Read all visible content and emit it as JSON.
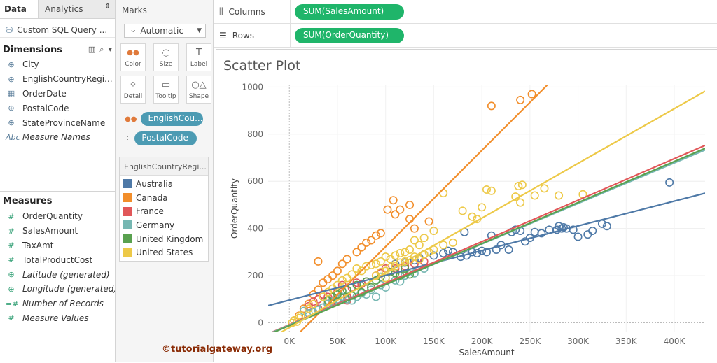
{
  "tabs": {
    "data": "Data",
    "analytics": "Analytics"
  },
  "datasource": {
    "label": "Custom SQL Query ..."
  },
  "dimensions": {
    "title": "Dimensions",
    "items": [
      {
        "label": "City",
        "icon": "globe-icon",
        "glyph": "⊕"
      },
      {
        "label": "EnglishCountryRegi...",
        "icon": "globe-icon",
        "glyph": "⊕"
      },
      {
        "label": "OrderDate",
        "icon": "calendar-icon",
        "glyph": "▦"
      },
      {
        "label": "PostalCode",
        "icon": "globe-icon",
        "glyph": "⊕"
      },
      {
        "label": "StateProvinceName",
        "icon": "globe-icon",
        "glyph": "⊕"
      },
      {
        "label": "Measure Names",
        "icon": "abc-icon",
        "glyph": "Abc"
      }
    ]
  },
  "measures": {
    "title": "Measures",
    "items": [
      {
        "label": "OrderQuantity",
        "icon": "number-icon",
        "glyph": "#"
      },
      {
        "label": "SalesAmount",
        "icon": "number-icon",
        "glyph": "#"
      },
      {
        "label": "TaxAmt",
        "icon": "number-icon",
        "glyph": "#"
      },
      {
        "label": "TotalProductCost",
        "icon": "number-icon",
        "glyph": "#"
      },
      {
        "label": "Latitude (generated)",
        "icon": "globe-icon",
        "glyph": "⊕"
      },
      {
        "label": "Longitude (generated)",
        "icon": "globe-icon",
        "glyph": "⊕"
      },
      {
        "label": "Number of Records",
        "icon": "number-icon",
        "glyph": "=#"
      },
      {
        "label": "Measure Values",
        "icon": "number-icon",
        "glyph": "#"
      }
    ]
  },
  "marks": {
    "title": "Marks",
    "type": "Automatic",
    "buttons": [
      {
        "label": "Color",
        "glyph": "●●"
      },
      {
        "label": "Size",
        "glyph": "◌"
      },
      {
        "label": "Label",
        "glyph": "T"
      },
      {
        "label": "Detail",
        "glyph": "⁘"
      },
      {
        "label": "Tooltip",
        "glyph": "▭"
      },
      {
        "label": "Shape",
        "glyph": "○△"
      }
    ],
    "pills": [
      "EnglishCou...",
      "PostalCode"
    ]
  },
  "legend": {
    "title": "EnglishCountryRegi...",
    "items": [
      {
        "label": "Australia",
        "color": "#4e79a7"
      },
      {
        "label": "Canada",
        "color": "#f28e2b"
      },
      {
        "label": "France",
        "color": "#e15759"
      },
      {
        "label": "Germany",
        "color": "#76b7b2"
      },
      {
        "label": "United Kingdom",
        "color": "#59a14f"
      },
      {
        "label": "United States",
        "color": "#edc948"
      }
    ]
  },
  "shelves": {
    "columns_label": "Columns",
    "columns_pill": "SUM(SalesAmount)",
    "rows_label": "Rows",
    "rows_pill": "SUM(OrderQuantity)"
  },
  "watermark": "©tutorialgateway.org",
  "chart_data": {
    "type": "scatter",
    "title": "Scatter Plot",
    "xlabel": "SalesAmount",
    "ylabel": "OrderQuantity",
    "xlim": [
      -22000,
      432000
    ],
    "ylim": [
      -40,
      1010
    ],
    "xticks": [
      0,
      50000,
      100000,
      150000,
      200000,
      250000,
      300000,
      350000,
      400000
    ],
    "xtick_labels": [
      "0K",
      "50K",
      "100K",
      "150K",
      "200K",
      "250K",
      "300K",
      "350K",
      "400K"
    ],
    "yticks": [
      0,
      200,
      400,
      600,
      800,
      1000
    ],
    "ytick_labels": [
      "0",
      "200",
      "400",
      "600",
      "800",
      "1000"
    ],
    "series": [
      {
        "name": "Australia",
        "color": "#4e79a7",
        "trend": [
          0.00105,
          96
        ],
        "points": [
          [
            182000,
            385
          ],
          [
            210000,
            370
          ],
          [
            231000,
            385
          ],
          [
            235000,
            395
          ],
          [
            240000,
            390
          ],
          [
            245000,
            345
          ],
          [
            250000,
            360
          ],
          [
            255000,
            385
          ],
          [
            262000,
            380
          ],
          [
            270000,
            395
          ],
          [
            278000,
            395
          ],
          [
            280000,
            410
          ],
          [
            283000,
            400
          ],
          [
            285000,
            405
          ],
          [
            288000,
            400
          ],
          [
            295000,
            395
          ],
          [
            300000,
            365
          ],
          [
            310000,
            375
          ],
          [
            315000,
            390
          ],
          [
            325000,
            420
          ],
          [
            330000,
            410
          ],
          [
            395000,
            595
          ],
          [
            150000,
            285
          ],
          [
            160000,
            295
          ],
          [
            165000,
            305
          ],
          [
            170000,
            300
          ],
          [
            178000,
            280
          ],
          [
            184000,
            285
          ],
          [
            190000,
            300
          ],
          [
            195000,
            295
          ],
          [
            200000,
            305
          ],
          [
            205000,
            300
          ],
          [
            215000,
            310
          ],
          [
            220000,
            330
          ],
          [
            228000,
            310
          ],
          [
            140000,
            290
          ],
          [
            135000,
            275
          ],
          [
            130000,
            265
          ],
          [
            120000,
            255
          ],
          [
            110000,
            250
          ]
        ]
      },
      {
        "name": "Canada",
        "color": "#f28e2b",
        "trend": [
          0.00408,
          -85
        ],
        "points": [
          [
            210000,
            920
          ],
          [
            240000,
            945
          ],
          [
            252000,
            970
          ],
          [
            102000,
            480
          ],
          [
            108000,
            520
          ],
          [
            115000,
            480
          ],
          [
            125000,
            500
          ],
          [
            110000,
            460
          ],
          [
            125000,
            440
          ],
          [
            145000,
            430
          ],
          [
            130000,
            400
          ],
          [
            30000,
            260
          ],
          [
            90000,
            370
          ],
          [
            95000,
            380
          ],
          [
            85000,
            350
          ],
          [
            80000,
            340
          ],
          [
            75000,
            320
          ],
          [
            70000,
            300
          ],
          [
            60000,
            270
          ],
          [
            55000,
            250
          ],
          [
            45000,
            200
          ],
          [
            40000,
            185
          ],
          [
            35000,
            170
          ],
          [
            50000,
            220
          ],
          [
            20000,
            80
          ],
          [
            15000,
            60
          ],
          [
            10000,
            30
          ],
          [
            25000,
            120
          ],
          [
            30000,
            140
          ],
          [
            5000,
            10
          ]
        ]
      },
      {
        "name": "France",
        "color": "#e15759",
        "trend": [
          0.00176,
          -8
        ],
        "points": [
          [
            20000,
            70
          ],
          [
            25000,
            90
          ],
          [
            30000,
            100
          ],
          [
            35000,
            120
          ],
          [
            40000,
            110
          ],
          [
            45000,
            95
          ],
          [
            50000,
            130
          ],
          [
            55000,
            160
          ],
          [
            60000,
            110
          ],
          [
            65000,
            150
          ],
          [
            70000,
            170
          ],
          [
            75000,
            165
          ],
          [
            80000,
            175
          ],
          [
            90000,
            200
          ],
          [
            95000,
            210
          ],
          [
            100000,
            230
          ],
          [
            30000,
            60
          ],
          [
            40000,
            80
          ],
          [
            50000,
            90
          ],
          [
            60000,
            95
          ],
          [
            110000,
            230
          ],
          [
            120000,
            240
          ],
          [
            130000,
            250
          ],
          [
            140000,
            260
          ]
        ]
      },
      {
        "name": "Germany",
        "color": "#76b7b2",
        "trend": [
          0.00172,
          -10
        ],
        "points": [
          [
            15000,
            50
          ],
          [
            20000,
            40
          ],
          [
            25000,
            45
          ],
          [
            30000,
            55
          ],
          [
            35000,
            65
          ],
          [
            40000,
            80
          ],
          [
            45000,
            90
          ],
          [
            50000,
            100
          ],
          [
            55000,
            110
          ],
          [
            60000,
            100
          ],
          [
            65000,
            95
          ],
          [
            70000,
            110
          ],
          [
            80000,
            120
          ],
          [
            90000,
            110
          ],
          [
            100000,
            150
          ],
          [
            110000,
            180
          ],
          [
            120000,
            200
          ],
          [
            115000,
            175
          ],
          [
            130000,
            210
          ],
          [
            140000,
            230
          ],
          [
            85000,
            140
          ],
          [
            75000,
            125
          ],
          [
            95000,
            160
          ]
        ]
      },
      {
        "name": "United Kingdom",
        "color": "#59a14f",
        "trend": [
          0.00174,
          -12
        ],
        "points": [
          [
            40000,
            95
          ],
          [
            50000,
            120
          ],
          [
            60000,
            140
          ],
          [
            70000,
            160
          ],
          [
            80000,
            175
          ],
          [
            90000,
            180
          ],
          [
            100000,
            190
          ],
          [
            110000,
            210
          ],
          [
            115000,
            200
          ],
          [
            105000,
            215
          ],
          [
            95000,
            195
          ],
          [
            85000,
            150
          ],
          [
            75000,
            130
          ],
          [
            65000,
            115
          ],
          [
            55000,
            135
          ],
          [
            45000,
            110
          ],
          [
            120000,
            230
          ],
          [
            125000,
            205
          ]
        ]
      },
      {
        "name": "United States",
        "color": "#edc948",
        "trend": [
          0.00232,
          -20
        ],
        "points": [
          [
            160000,
            550
          ],
          [
            200000,
            490
          ],
          [
            205000,
            565
          ],
          [
            210000,
            560
          ],
          [
            235000,
            535
          ],
          [
            238000,
            580
          ],
          [
            242000,
            585
          ],
          [
            240000,
            510
          ],
          [
            255000,
            540
          ],
          [
            265000,
            570
          ],
          [
            280000,
            540
          ],
          [
            305000,
            545
          ],
          [
            180000,
            475
          ],
          [
            190000,
            450
          ],
          [
            195000,
            440
          ],
          [
            150000,
            390
          ],
          [
            140000,
            360
          ],
          [
            130000,
            350
          ],
          [
            135000,
            330
          ],
          [
            120000,
            300
          ],
          [
            125000,
            310
          ],
          [
            100000,
            280
          ],
          [
            105000,
            270
          ],
          [
            110000,
            285
          ],
          [
            115000,
            295
          ],
          [
            90000,
            250
          ],
          [
            95000,
            260
          ],
          [
            85000,
            245
          ],
          [
            80000,
            240
          ],
          [
            70000,
            230
          ],
          [
            75000,
            220
          ],
          [
            60000,
            190
          ],
          [
            65000,
            205
          ],
          [
            55000,
            180
          ],
          [
            50000,
            160
          ],
          [
            40000,
            130
          ],
          [
            45000,
            145
          ],
          [
            35000,
            110
          ],
          [
            25000,
            80
          ],
          [
            20000,
            60
          ],
          [
            10000,
            20
          ],
          [
            5000,
            10
          ],
          [
            8000,
            5
          ],
          [
            3000,
            0
          ],
          [
            12000,
            30
          ],
          [
            145000,
            300
          ],
          [
            150000,
            310
          ],
          [
            160000,
            330
          ],
          [
            170000,
            340
          ],
          [
            100000,
            220
          ],
          [
            110000,
            240
          ],
          [
            120000,
            260
          ],
          [
            130000,
            280
          ],
          [
            140000,
            290
          ],
          [
            115000,
            255
          ],
          [
            125000,
            265
          ],
          [
            135000,
            270
          ],
          [
            105000,
            235
          ],
          [
            95000,
            215
          ],
          [
            90000,
            200
          ],
          [
            100000,
            190
          ]
        ]
      }
    ]
  }
}
